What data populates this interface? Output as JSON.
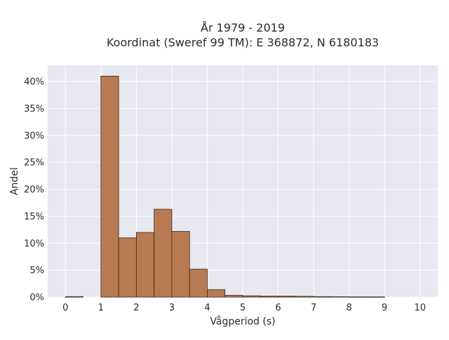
{
  "chart_data": {
    "type": "bar",
    "title": [
      "År 1979 - 2019",
      "Koordinat (Sweref 99 TM): E 368872, N 6180183"
    ],
    "xlabel": "Vågperiod (s)",
    "ylabel": "Andel",
    "bin_width": 0.5,
    "bins": [
      {
        "x0": 0.0,
        "x1": 0.5,
        "value": 0.1
      },
      {
        "x0": 0.5,
        "x1": 1.0,
        "value": 0.0
      },
      {
        "x0": 1.0,
        "x1": 1.5,
        "value": 41.0
      },
      {
        "x0": 1.5,
        "x1": 2.0,
        "value": 11.0
      },
      {
        "x0": 2.0,
        "x1": 2.5,
        "value": 12.0
      },
      {
        "x0": 2.5,
        "x1": 3.0,
        "value": 16.3
      },
      {
        "x0": 3.0,
        "x1": 3.5,
        "value": 12.2
      },
      {
        "x0": 3.5,
        "x1": 4.0,
        "value": 5.2
      },
      {
        "x0": 4.0,
        "x1": 4.5,
        "value": 1.4
      },
      {
        "x0": 4.5,
        "x1": 5.0,
        "value": 0.35
      },
      {
        "x0": 5.0,
        "x1": 5.5,
        "value": 0.25
      },
      {
        "x0": 5.5,
        "x1": 6.0,
        "value": 0.2
      },
      {
        "x0": 6.0,
        "x1": 6.5,
        "value": 0.2
      },
      {
        "x0": 6.5,
        "x1": 7.0,
        "value": 0.15
      },
      {
        "x0": 7.0,
        "x1": 7.5,
        "value": 0.1
      },
      {
        "x0": 7.5,
        "x1": 8.0,
        "value": 0.08
      },
      {
        "x0": 8.0,
        "x1": 8.5,
        "value": 0.06
      },
      {
        "x0": 8.5,
        "x1": 9.0,
        "value": 0.05
      }
    ],
    "xlim": [
      -0.5,
      10.5
    ],
    "ylim": [
      0,
      43
    ],
    "x_ticks": [
      0,
      1,
      2,
      3,
      4,
      5,
      6,
      7,
      8,
      9,
      10
    ],
    "x_tick_labels": [
      "0",
      "1",
      "2",
      "3",
      "4",
      "5",
      "6",
      "7",
      "8",
      "9",
      "10"
    ],
    "y_ticks": [
      0,
      5,
      10,
      15,
      20,
      25,
      30,
      35,
      40
    ],
    "y_tick_labels": [
      "0%",
      "5%",
      "10%",
      "15%",
      "20%",
      "25%",
      "30%",
      "35%",
      "40%"
    ],
    "grid": true,
    "colors": {
      "bar_fill": "#b87a52",
      "bar_stroke": "#3a2a20",
      "plot_bg": "#e8e8f0",
      "grid": "#ffffff"
    }
  }
}
